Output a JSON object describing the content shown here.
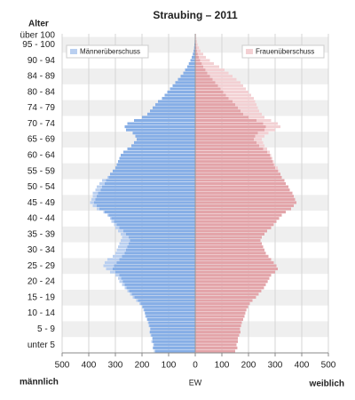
{
  "chart_data": {
    "type": "pyramid",
    "title": "Straubing – 2011",
    "y_label": "Alter",
    "x_label": "EW",
    "left_label": "männlich",
    "right_label": "weiblich",
    "legend": [
      {
        "name": "Männerüberschuss",
        "color": "#b9cff0"
      },
      {
        "name": "Frauenüberschuss",
        "color": "#f3d0d3"
      }
    ],
    "male_color": "#86aee6",
    "female_color": "#e3a4a9",
    "categories": [
      null,
      null,
      "unter 5",
      null,
      null,
      null,
      null,
      "5 - 9",
      null,
      null,
      null,
      null,
      "10 - 14",
      null,
      null,
      null,
      null,
      "15 - 19",
      null,
      null,
      null,
      null,
      "20 - 24",
      null,
      null,
      null,
      null,
      "25 - 29",
      null,
      null,
      null,
      null,
      "30 - 34",
      null,
      null,
      null,
      null,
      "35 - 39",
      null,
      null,
      null,
      null,
      "40 - 44",
      null,
      null,
      null,
      null,
      "45 - 49",
      null,
      null,
      null,
      null,
      "50 - 54",
      null,
      null,
      null,
      null,
      "55 - 59",
      null,
      null,
      null,
      null,
      "60 - 64",
      null,
      null,
      null,
      null,
      "65 - 69",
      null,
      null,
      null,
      null,
      "70 - 74",
      null,
      null,
      null,
      null,
      "74 - 79",
      null,
      null,
      null,
      null,
      "80 - 84",
      null,
      null,
      null,
      null,
      "84 - 89",
      null,
      null,
      null,
      null,
      "90 - 94",
      null,
      null,
      null,
      null,
      "95 - 100",
      null,
      null,
      "über 100"
    ],
    "male": [
      155,
      160,
      158,
      165,
      162,
      168,
      172,
      170,
      175,
      178,
      182,
      188,
      190,
      195,
      200,
      210,
      222,
      235,
      245,
      255,
      265,
      275,
      285,
      290,
      300,
      320,
      335,
      345,
      340,
      330,
      310,
      300,
      295,
      290,
      285,
      280,
      275,
      280,
      290,
      300,
      305,
      315,
      320,
      330,
      345,
      370,
      385,
      395,
      390,
      385,
      385,
      375,
      370,
      360,
      350,
      330,
      320,
      310,
      300,
      295,
      290,
      285,
      280,
      270,
      255,
      240,
      230,
      220,
      225,
      235,
      260,
      265,
      255,
      230,
      200,
      180,
      170,
      160,
      150,
      140,
      125,
      115,
      105,
      95,
      85,
      75,
      65,
      55,
      45,
      38,
      30,
      24,
      18,
      13,
      9,
      6,
      4,
      3,
      2,
      1,
      1
    ],
    "female": [
      150,
      158,
      155,
      160,
      160,
      165,
      170,
      168,
      172,
      175,
      180,
      185,
      188,
      192,
      198,
      205,
      215,
      228,
      238,
      248,
      258,
      265,
      272,
      278,
      285,
      300,
      310,
      305,
      295,
      285,
      275,
      265,
      260,
      255,
      250,
      245,
      250,
      260,
      270,
      285,
      295,
      305,
      315,
      325,
      340,
      360,
      370,
      380,
      375,
      370,
      365,
      355,
      350,
      340,
      335,
      325,
      320,
      315,
      310,
      300,
      295,
      290,
      285,
      280,
      270,
      260,
      255,
      250,
      260,
      275,
      300,
      320,
      310,
      285,
      260,
      250,
      240,
      235,
      230,
      225,
      220,
      210,
      200,
      190,
      180,
      170,
      155,
      140,
      125,
      110,
      90,
      70,
      55,
      40,
      30,
      20,
      14,
      9,
      6,
      4,
      3
    ],
    "xlim": [
      -500,
      500
    ],
    "xticks": [
      {
        "value": -500,
        "label": "500"
      },
      {
        "value": -400,
        "label": "400"
      },
      {
        "value": -300,
        "label": "300"
      },
      {
        "value": -200,
        "label": "200"
      },
      {
        "value": -100,
        "label": "100"
      },
      0,
      100,
      200,
      300,
      400,
      500
    ],
    "grid": true
  }
}
